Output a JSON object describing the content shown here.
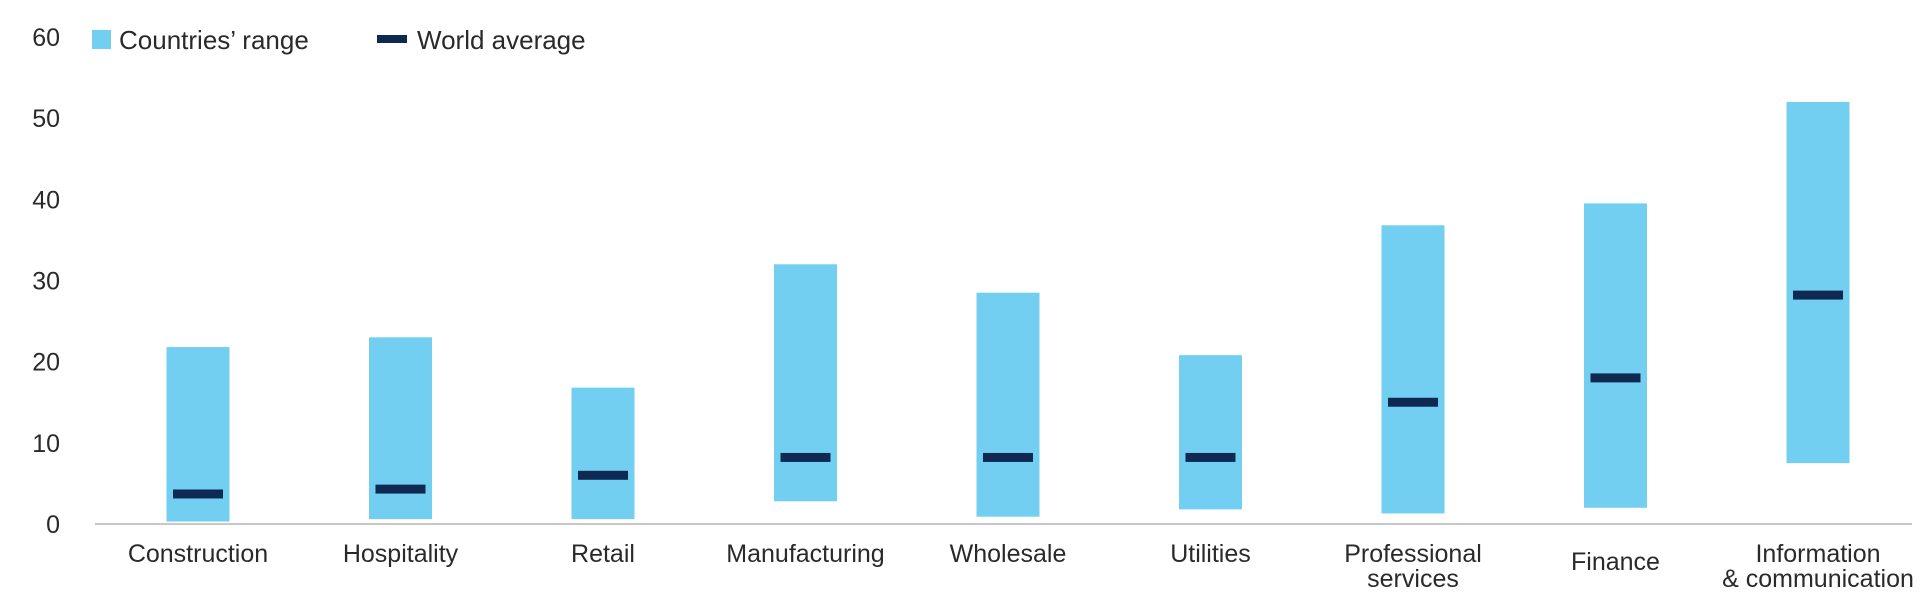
{
  "chart_data": {
    "type": "bar",
    "subtype": "floating-range-with-marker",
    "title": "",
    "xlabel": "",
    "ylabel": "",
    "ylim": [
      0,
      60
    ],
    "yticks": [
      0,
      10,
      20,
      30,
      40,
      50,
      60
    ],
    "grid": false,
    "legend": {
      "placement": "top-left",
      "items": [
        {
          "label": "Countries’ range",
          "symbol": "square",
          "color": "#72cff2"
        },
        {
          "label": "World average",
          "symbol": "dash",
          "color": "#0f2a52"
        }
      ]
    },
    "categories": [
      [
        "Construction"
      ],
      [
        "Hospitality"
      ],
      [
        "Retail"
      ],
      [
        "Manufacturing"
      ],
      [
        "Wholesale"
      ],
      [
        "Utilities"
      ],
      [
        "Professional",
        "services"
      ],
      [
        "Finance"
      ],
      [
        "Information",
        "& communication"
      ]
    ],
    "series": [
      {
        "name": "Countries’ range",
        "color": "#72cff2",
        "low": [
          0.3,
          0.6,
          0.6,
          2.8,
          0.9,
          1.8,
          1.3,
          2.0,
          7.5
        ],
        "high": [
          21.8,
          23.0,
          16.8,
          32.0,
          28.5,
          20.8,
          36.8,
          39.5,
          52.0
        ]
      },
      {
        "name": "World average",
        "color": "#0f2a52",
        "values": [
          3.7,
          4.3,
          6.0,
          8.2,
          8.2,
          8.2,
          15.0,
          18.0,
          28.2
        ]
      }
    ],
    "axis_color": "#c8c8c8"
  }
}
